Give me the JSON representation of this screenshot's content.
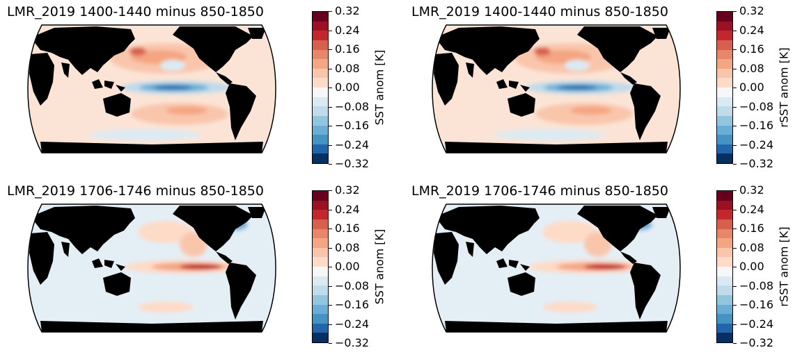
{
  "panels": [
    {
      "title": "LMR_2019 1400-1440 minus 850-1850",
      "colorbar_label": "SST anom [K]",
      "pattern": "la-nina"
    },
    {
      "title": "LMR_2019 1400-1440 minus 850-1850",
      "colorbar_label": "rSST anom [K]",
      "pattern": "la-nina"
    },
    {
      "title": "LMR_2019 1706-1746 minus 850-1850",
      "colorbar_label": "SST anom [K]",
      "pattern": "el-nino"
    },
    {
      "title": "LMR_2019 1706-1746 minus 850-1850",
      "colorbar_label": "rSST anom [K]",
      "pattern": "el-nino"
    }
  ],
  "colorbar": {
    "ticks": [
      "0.32",
      "0.24",
      "0.16",
      "0.08",
      "0.00",
      "−0.08",
      "−0.16",
      "−0.24",
      "−0.32"
    ],
    "colors": [
      "#67001f",
      "#9b1023",
      "#c1272d",
      "#d6604d",
      "#e8866a",
      "#f4a582",
      "#f9c6ac",
      "#fddbc7",
      "#f7f7f7",
      "#dbeaf2",
      "#c0dbea",
      "#92c5de",
      "#6aaed6",
      "#4393c3",
      "#2166ac",
      "#053061"
    ]
  }
}
